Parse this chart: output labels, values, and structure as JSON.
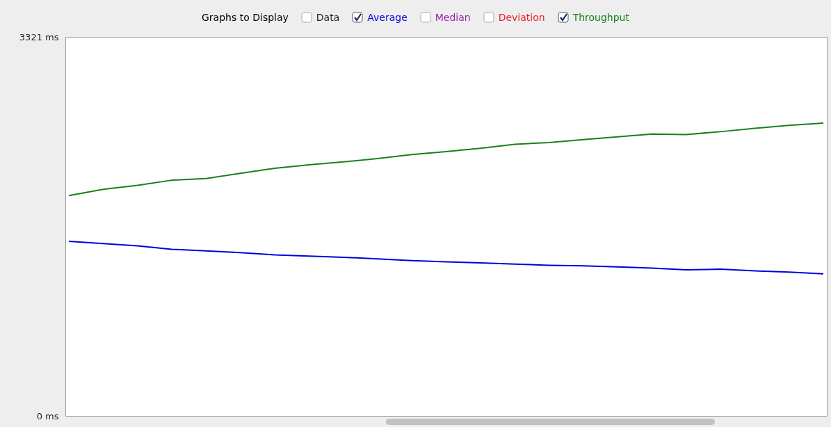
{
  "chart_data": {
    "type": "line",
    "legend_title": "Graphs to Display",
    "legend": "top",
    "annotations": [
      "Data",
      "Median",
      "Deviation"
    ],
    "categories": [
      null,
      null,
      null,
      null,
      null,
      null,
      null,
      null,
      null,
      null,
      null,
      null,
      null,
      null,
      null,
      null,
      null,
      null,
      null,
      null,
      null,
      null,
      null
    ],
    "ylim": [
      0,
      3321
    ],
    "yticks": [
      {
        "value": 0,
        "label": "0 ms"
      },
      {
        "value": 3321,
        "label": "3321 ms"
      }
    ],
    "series": [
      {
        "name": "Average",
        "color": "#0000dd",
        "values": [
          1530,
          1510,
          1490,
          1460,
          1445,
          1430,
          1410,
          1400,
          1390,
          1375,
          1360,
          1350,
          1340,
          1330,
          1320,
          1315,
          1305,
          1295,
          1280,
          1285,
          1270,
          1260,
          1245
        ]
      },
      {
        "name": "Throughput",
        "color": "#1a7f1a",
        "values": [
          1930,
          1985,
          2020,
          2065,
          2080,
          2125,
          2170,
          2200,
          2225,
          2255,
          2290,
          2315,
          2345,
          2380,
          2395,
          2420,
          2445,
          2470,
          2465,
          2490,
          2520,
          2545,
          2565
        ]
      }
    ]
  }
}
